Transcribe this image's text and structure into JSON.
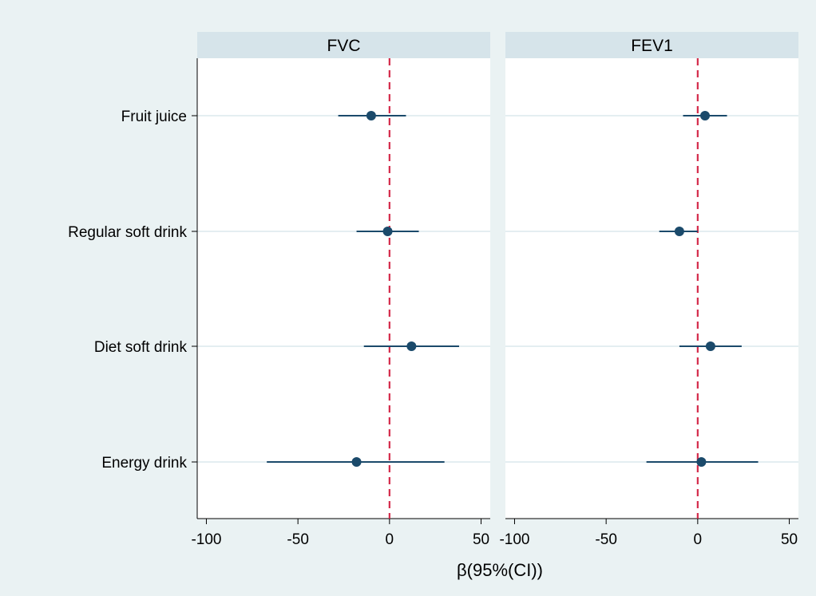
{
  "chart_data": {
    "type": "forest",
    "xlabel": "β(95%(CI))",
    "categories": [
      "Fruit juice",
      "Regular soft drink",
      "Diet soft drink",
      "Energy drink"
    ],
    "xlim": [
      -105,
      55
    ],
    "xticks": [
      "-100",
      "-50",
      "0",
      "50"
    ],
    "reference_line": 0,
    "panels": [
      {
        "title": "FVC",
        "points": [
          {
            "category": "Fruit juice",
            "estimate": -10,
            "lower": -28,
            "upper": 9
          },
          {
            "category": "Regular soft drink",
            "estimate": -1,
            "lower": -18,
            "upper": 16
          },
          {
            "category": "Diet soft drink",
            "estimate": 12,
            "lower": -14,
            "upper": 38
          },
          {
            "category": "Energy drink",
            "estimate": -18,
            "lower": -67,
            "upper": 30
          }
        ]
      },
      {
        "title": "FEV1",
        "points": [
          {
            "category": "Fruit juice",
            "estimate": 4,
            "lower": -8,
            "upper": 16
          },
          {
            "category": "Regular soft drink",
            "estimate": -10,
            "lower": -21,
            "upper": 0
          },
          {
            "category": "Diet soft drink",
            "estimate": 7,
            "lower": -10,
            "upper": 24
          },
          {
            "category": "Energy drink",
            "estimate": 2,
            "lower": -28,
            "upper": 33
          }
        ]
      }
    ],
    "colors": {
      "background": "#eaf2f3",
      "plot_background": "#ffffff",
      "panel_header": "#d6e4ea",
      "marker": "#1b4a6b",
      "reference_line": "#d42b4b",
      "gridline": "#e4eef1"
    },
    "grid": true
  }
}
